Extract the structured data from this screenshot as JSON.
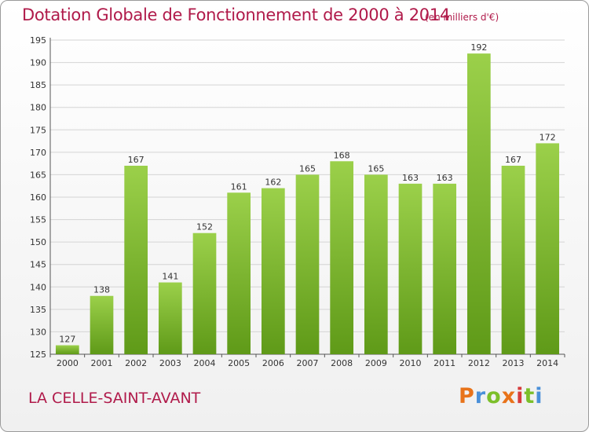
{
  "header": {
    "title": "Dotation Globale de Fonctionnement de 2000 à 2014",
    "unit": "(en milliers d'€)"
  },
  "footer": {
    "commune": "LA CELLE-SAINT-AVANT",
    "brand_letters": [
      "P",
      "r",
      "o",
      "x",
      "i",
      "t",
      "i"
    ],
    "brand_colors": [
      "#e8731a",
      "#4a90d9",
      "#7cbf2a",
      "#e8731a",
      "#d63c3c",
      "#7cbf2a",
      "#4a90d9"
    ]
  },
  "colors": {
    "bar_top": "#9bd04a",
    "bar_bottom": "#5f9a18",
    "title": "#b01a4a"
  },
  "chart_data": {
    "type": "bar",
    "title": "Dotation Globale de Fonctionnement de 2000 à 2014",
    "subtitle": "(en milliers d'€)",
    "categories": [
      "2000",
      "2001",
      "2002",
      "2003",
      "2004",
      "2005",
      "2006",
      "2007",
      "2008",
      "2009",
      "2010",
      "2011",
      "2012",
      "2013",
      "2014"
    ],
    "values": [
      127,
      138,
      167,
      141,
      152,
      161,
      162,
      165,
      168,
      165,
      163,
      163,
      192,
      167,
      172
    ],
    "ylim": [
      125,
      195
    ],
    "yticks": [
      125,
      130,
      135,
      140,
      145,
      150,
      155,
      160,
      165,
      170,
      175,
      180,
      185,
      190,
      195
    ],
    "grid": true,
    "legend": "none"
  }
}
